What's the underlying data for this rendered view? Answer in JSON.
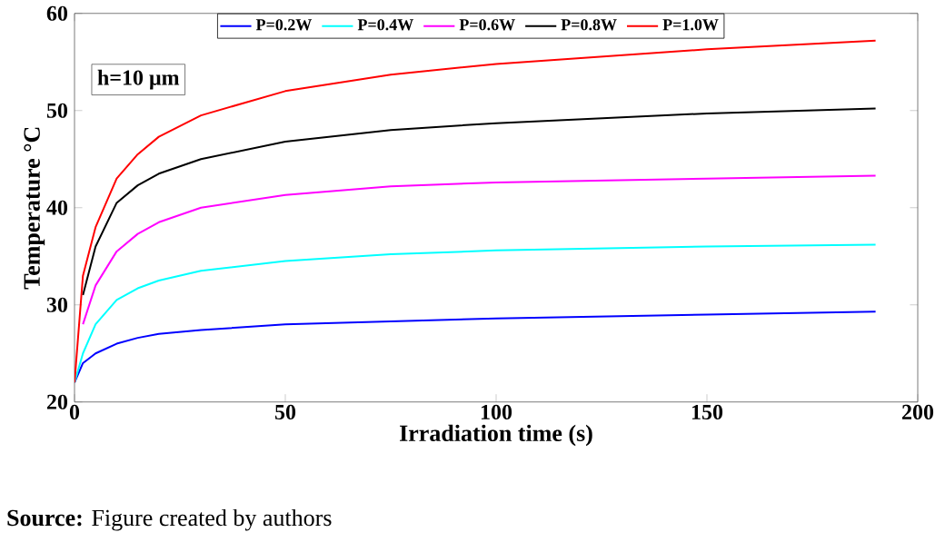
{
  "chart_data": {
    "type": "line",
    "xlabel": "Irradiation time (s)",
    "ylabel": "Temperature °C",
    "annotations": [
      "h=10 μm",
      "**Source:** Figure created by authors"
    ],
    "x": [
      0,
      2,
      5,
      10,
      15,
      20,
      30,
      50,
      75,
      100,
      150,
      190
    ],
    "series": [
      {
        "name": "P=0.2W",
        "color": "#0000ff",
        "values": [
          22,
          24,
          25,
          26,
          26.6,
          27,
          27.4,
          28,
          28.3,
          28.6,
          29,
          29.3
        ]
      },
      {
        "name": "P=0.4W",
        "color": "#00ffff",
        "values": [
          22,
          25,
          28,
          30.5,
          31.7,
          32.5,
          33.5,
          34.5,
          35.2,
          35.6,
          36,
          36.2
        ]
      },
      {
        "name": "P=0.6W",
        "color": "#ff00ff",
        "values": [
          null,
          28,
          32,
          35.5,
          37.3,
          38.5,
          40,
          41.3,
          42.2,
          42.6,
          43,
          43.3
        ]
      },
      {
        "name": "P=0.8W",
        "color": "#000000",
        "values": [
          null,
          31,
          36,
          40.5,
          42.3,
          43.5,
          45,
          46.8,
          48,
          48.7,
          49.7,
          50.2
        ]
      },
      {
        "name": "P=1.0W",
        "color": "#ff0000",
        "values": [
          22,
          33,
          38,
          43,
          45.5,
          47.3,
          49.5,
          52,
          53.7,
          54.8,
          56.3,
          57.2
        ]
      }
    ],
    "xlim": [
      0,
      200
    ],
    "ylim": [
      20,
      60
    ],
    "xticks": [
      0,
      50,
      100,
      150,
      200
    ],
    "yticks": [
      20,
      30,
      40,
      50,
      60
    ],
    "grid": false,
    "legend": "top",
    "marker": "none",
    "line_style": "solid"
  }
}
